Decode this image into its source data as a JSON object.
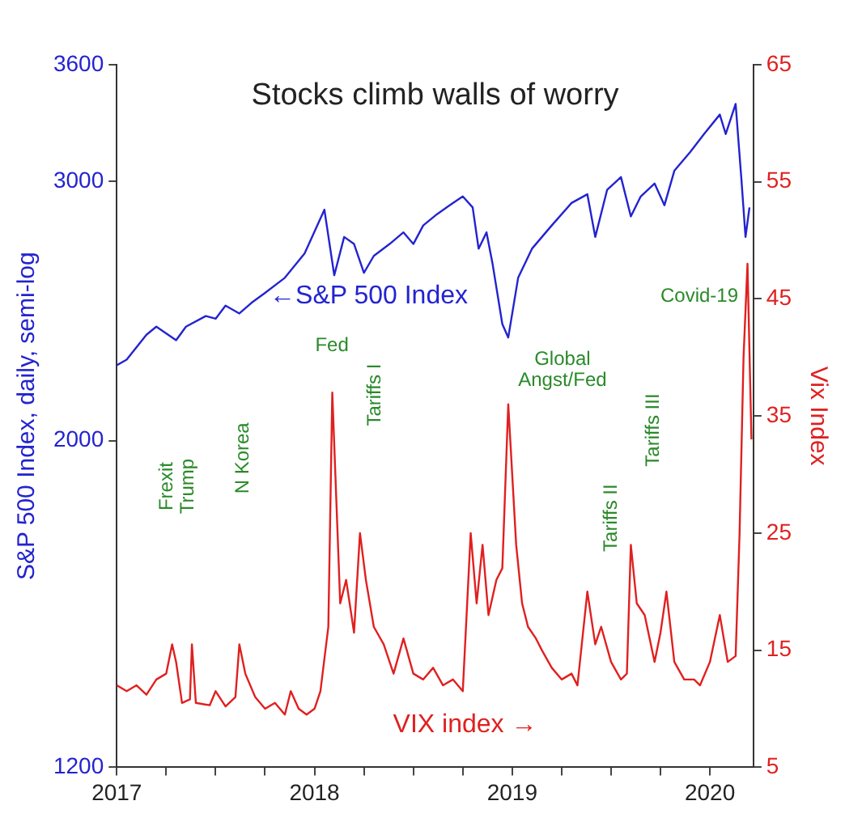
{
  "chart_data": {
    "type": "line",
    "title": "Stocks climb walls of worry",
    "ylabel": "S&P 500 Index, daily, semi-log",
    "y2label": "Vix Index",
    "xlim": [
      2017,
      2020.22
    ],
    "xticks": [
      2017,
      {
        "value": 2017.25,
        "label": null
      },
      {
        "value": 2017.5,
        "label": null
      },
      {
        "value": 2017.75,
        "label": null
      },
      2018,
      {
        "value": 2018.25,
        "label": null
      },
      {
        "value": 2018.5,
        "label": null
      },
      {
        "value": 2018.75,
        "label": null
      },
      2019,
      {
        "value": 2019.25,
        "label": null
      },
      {
        "value": 2019.5,
        "label": null
      },
      {
        "value": 2019.75,
        "label": null
      },
      2020
    ],
    "ylim": [
      1200,
      3600
    ],
    "yticks": [
      1200,
      2000,
      3000,
      3600
    ],
    "log": "y",
    "y2lim": [
      5,
      65
    ],
    "y2ticks": [
      5,
      15,
      25,
      35,
      45,
      55,
      65
    ],
    "grid": false,
    "legend": false,
    "marker": "none",
    "line_style": "solid",
    "series": [
      {
        "name": "←S&P 500 Index",
        "color": "#2323d0",
        "x": [
          2017.0,
          2017.05,
          2017.15,
          2017.2,
          2017.3,
          2017.35,
          2017.45,
          2017.5,
          2017.55,
          2017.62,
          2017.68,
          2017.75,
          2017.85,
          2017.95,
          2018.05,
          2018.1,
          2018.15,
          2018.2,
          2018.25,
          2018.3,
          2018.38,
          2018.45,
          2018.5,
          2018.55,
          2018.62,
          2018.7,
          2018.75,
          2018.8,
          2018.83,
          2018.87,
          2018.9,
          2018.95,
          2018.98,
          2019.03,
          2019.1,
          2019.2,
          2019.3,
          2019.38,
          2019.42,
          2019.48,
          2019.55,
          2019.6,
          2019.65,
          2019.72,
          2019.77,
          2019.82,
          2019.9,
          2019.97,
          2020.05,
          2020.08,
          2020.13,
          2020.16,
          2020.18,
          2020.2
        ],
        "values": [
          2250,
          2270,
          2360,
          2390,
          2340,
          2390,
          2430,
          2420,
          2470,
          2440,
          2480,
          2520,
          2580,
          2680,
          2870,
          2590,
          2750,
          2720,
          2600,
          2670,
          2720,
          2770,
          2720,
          2800,
          2850,
          2900,
          2930,
          2880,
          2700,
          2770,
          2640,
          2400,
          2350,
          2580,
          2700,
          2800,
          2900,
          2940,
          2750,
          2960,
          3020,
          2840,
          2930,
          2990,
          2890,
          3050,
          3140,
          3230,
          3330,
          3230,
          3386,
          3000,
          2750,
          2880
        ]
      },
      {
        "name": "VIX index →",
        "color": "#e02020",
        "axis": "y2",
        "x": [
          2017.0,
          2017.05,
          2017.1,
          2017.15,
          2017.2,
          2017.25,
          2017.28,
          2017.3,
          2017.33,
          2017.37,
          2017.38,
          2017.4,
          2017.47,
          2017.5,
          2017.55,
          2017.6,
          2017.62,
          2017.65,
          2017.7,
          2017.75,
          2017.8,
          2017.85,
          2017.88,
          2017.92,
          2017.96,
          2018.0,
          2018.03,
          2018.07,
          2018.09,
          2018.11,
          2018.13,
          2018.16,
          2018.2,
          2018.23,
          2018.26,
          2018.3,
          2018.35,
          2018.4,
          2018.45,
          2018.5,
          2018.55,
          2018.6,
          2018.65,
          2018.7,
          2018.75,
          2018.79,
          2018.82,
          2018.85,
          2018.88,
          2018.92,
          2018.95,
          2018.98,
          2019.02,
          2019.05,
          2019.08,
          2019.12,
          2019.15,
          2019.2,
          2019.25,
          2019.3,
          2019.33,
          2019.38,
          2019.42,
          2019.45,
          2019.5,
          2019.55,
          2019.58,
          2019.6,
          2019.63,
          2019.67,
          2019.72,
          2019.75,
          2019.78,
          2019.82,
          2019.87,
          2019.92,
          2019.95,
          2020.0,
          2020.05,
          2020.09,
          2020.13,
          2020.15,
          2020.17,
          2020.19,
          2020.21
        ],
        "values": [
          12,
          11.5,
          12,
          11.2,
          12.5,
          13,
          15.5,
          14,
          10.5,
          10.8,
          15.5,
          10.5,
          10.3,
          11.5,
          10.2,
          11,
          15.5,
          13,
          11,
          10,
          10.5,
          9.5,
          11.5,
          10,
          9.5,
          10,
          11.5,
          17,
          37,
          28,
          19,
          21,
          16.5,
          25,
          21,
          17,
          15.5,
          13,
          16,
          13,
          12.5,
          13.5,
          12,
          12.5,
          11.5,
          25,
          19,
          24,
          18,
          21,
          22,
          36,
          24,
          19,
          17,
          16,
          15,
          13.5,
          12.5,
          13,
          12,
          20,
          15.5,
          17,
          14,
          12.5,
          13,
          24,
          19,
          18,
          14,
          16.5,
          20,
          14,
          12.5,
          12.5,
          12,
          14,
          18,
          14,
          14.5,
          25,
          40,
          48,
          33
        ]
      }
    ],
    "annotations": [
      "Frexit Trump",
      "N Korea",
      "Fed",
      "Tariffs I",
      "Global Angst/Fed",
      "Tariffs II",
      "Tariffs III",
      "Covid-19"
    ]
  }
}
